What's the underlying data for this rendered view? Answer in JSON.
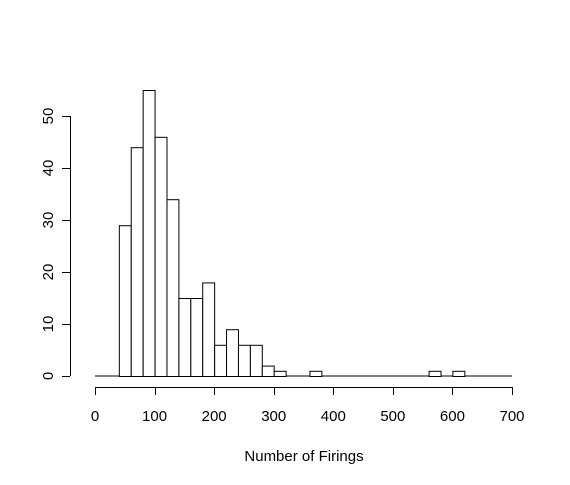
{
  "chart_data": {
    "type": "bar",
    "title": "",
    "xlabel": "Number of Firings",
    "ylabel": "",
    "xlim": [
      0,
      700
    ],
    "ylim": [
      0,
      55
    ],
    "x_ticks": [
      0,
      100,
      200,
      300,
      400,
      500,
      600,
      700
    ],
    "y_ticks": [
      0,
      10,
      20,
      30,
      40,
      50
    ],
    "grid": false,
    "legend": "none",
    "bins": [
      {
        "start": 0,
        "end": 20,
        "count": 0
      },
      {
        "start": 20,
        "end": 40,
        "count": 0
      },
      {
        "start": 40,
        "end": 60,
        "count": 29
      },
      {
        "start": 60,
        "end": 80,
        "count": 44
      },
      {
        "start": 80,
        "end": 100,
        "count": 55
      },
      {
        "start": 100,
        "end": 120,
        "count": 46
      },
      {
        "start": 120,
        "end": 140,
        "count": 34
      },
      {
        "start": 140,
        "end": 160,
        "count": 15
      },
      {
        "start": 160,
        "end": 180,
        "count": 15
      },
      {
        "start": 180,
        "end": 200,
        "count": 18
      },
      {
        "start": 200,
        "end": 220,
        "count": 6
      },
      {
        "start": 220,
        "end": 240,
        "count": 9
      },
      {
        "start": 240,
        "end": 260,
        "count": 6
      },
      {
        "start": 260,
        "end": 280,
        "count": 6
      },
      {
        "start": 280,
        "end": 300,
        "count": 2
      },
      {
        "start": 300,
        "end": 320,
        "count": 1
      },
      {
        "start": 320,
        "end": 340,
        "count": 0
      },
      {
        "start": 340,
        "end": 360,
        "count": 0
      },
      {
        "start": 360,
        "end": 380,
        "count": 1
      },
      {
        "start": 380,
        "end": 400,
        "count": 0
      },
      {
        "start": 400,
        "end": 420,
        "count": 0
      },
      {
        "start": 420,
        "end": 440,
        "count": 0
      },
      {
        "start": 440,
        "end": 460,
        "count": 0
      },
      {
        "start": 460,
        "end": 480,
        "count": 0
      },
      {
        "start": 480,
        "end": 500,
        "count": 0
      },
      {
        "start": 500,
        "end": 520,
        "count": 0
      },
      {
        "start": 520,
        "end": 540,
        "count": 0
      },
      {
        "start": 540,
        "end": 560,
        "count": 0
      },
      {
        "start": 560,
        "end": 580,
        "count": 1
      },
      {
        "start": 580,
        "end": 600,
        "count": 0
      },
      {
        "start": 600,
        "end": 620,
        "count": 1
      },
      {
        "start": 620,
        "end": 640,
        "count": 0
      },
      {
        "start": 640,
        "end": 660,
        "count": 0
      },
      {
        "start": 660,
        "end": 680,
        "count": 0
      },
      {
        "start": 680,
        "end": 700,
        "count": 0
      }
    ],
    "bar_fill": "#ffffff",
    "bar_stroke": "#000000"
  }
}
